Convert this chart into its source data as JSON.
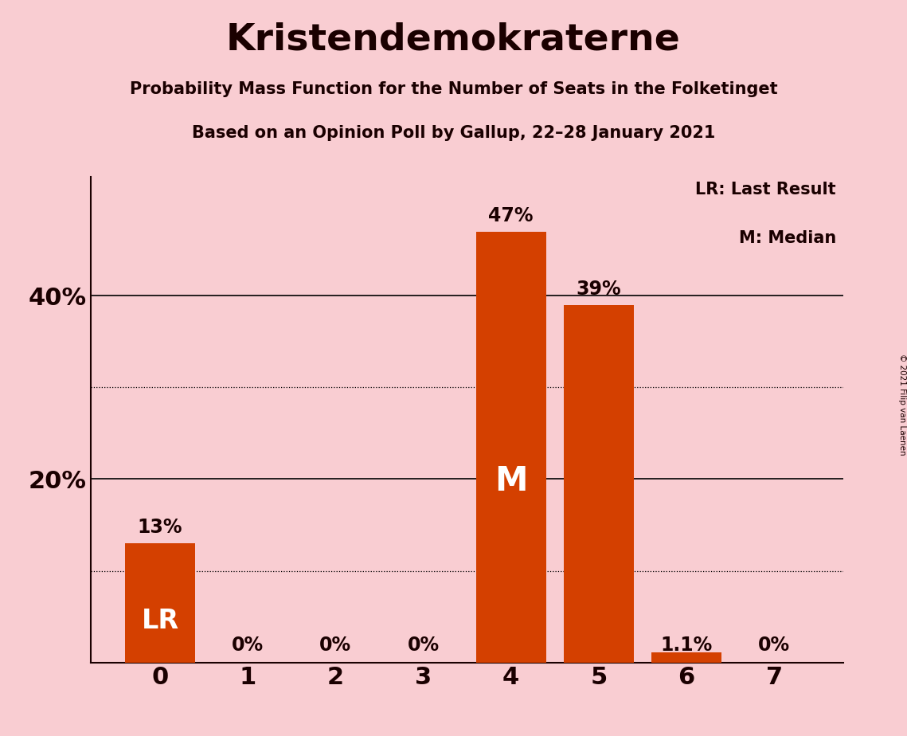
{
  "title": "Kristendemokraterne",
  "subtitle1": "Probability Mass Function for the Number of Seats in the Folketinget",
  "subtitle2": "Based on an Opinion Poll by Gallup, 22–28 January 2021",
  "categories": [
    0,
    1,
    2,
    3,
    4,
    5,
    6,
    7
  ],
  "values": [
    0.13,
    0.0,
    0.0,
    0.0,
    0.47,
    0.39,
    0.011,
    0.0
  ],
  "bar_labels": [
    "13%",
    "0%",
    "0%",
    "0%",
    "47%",
    "39%",
    "1.1%",
    "0%"
  ],
  "bar_color": "#d44000",
  "background_color": "#f9cdd2",
  "text_color": "#1a0000",
  "white_text_color": "#ffffff",
  "lr_bar_index": 0,
  "median_bar_index": 4,
  "lr_label": "LR",
  "median_label": "M",
  "legend_lr": "LR: Last Result",
  "legend_m": "M: Median",
  "copyright": "© 2021 Filip van Laenen",
  "ylim": [
    0,
    0.53
  ],
  "dotted_lines": [
    0.1,
    0.3
  ],
  "solid_lines": [
    0.2,
    0.4
  ],
  "ytick_positions": [
    0.0,
    0.2,
    0.4
  ],
  "ytick_labels": [
    "",
    "20%",
    "40%"
  ]
}
